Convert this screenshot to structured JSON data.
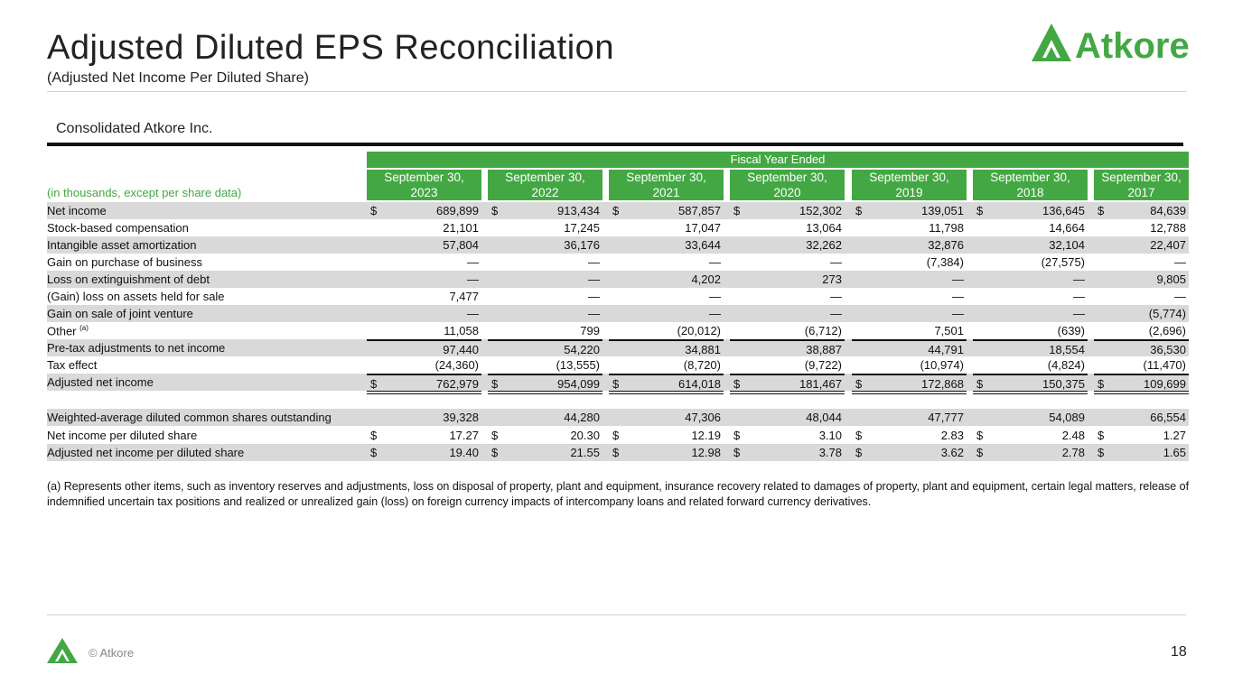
{
  "header": {
    "title": "Adjusted Diluted EPS Reconciliation",
    "subtitle": "(Adjusted Net Income Per Diluted Share)",
    "logo_text": "Atkore"
  },
  "section_title": "Consolidated Atkore Inc.",
  "table": {
    "group_header": "Fiscal Year Ended",
    "units_label": "(in thousands, except per share data)",
    "columns": [
      {
        "line1": "September 30,",
        "line2": "2023"
      },
      {
        "line1": "September 30,",
        "line2": "2022"
      },
      {
        "line1": "September 30,",
        "line2": "2021"
      },
      {
        "line1": "September 30,",
        "line2": "2020"
      },
      {
        "line1": "September 30,",
        "line2": "2019"
      },
      {
        "line1": "September 30,",
        "line2": "2018"
      },
      {
        "line1": "September 30,",
        "line2": "2017"
      }
    ],
    "rows": [
      {
        "label": "Net income",
        "dollar": true,
        "shade": true,
        "values": [
          "689,899",
          "913,434",
          "587,857",
          "152,302",
          "139,051",
          "136,645",
          "84,639"
        ]
      },
      {
        "label": "Stock-based compensation",
        "values": [
          "21,101",
          "17,245",
          "17,047",
          "13,064",
          "11,798",
          "14,664",
          "12,788"
        ]
      },
      {
        "label": "Intangible asset amortization",
        "shade": true,
        "values": [
          "57,804",
          "36,176",
          "33,644",
          "32,262",
          "32,876",
          "32,104",
          "22,407"
        ]
      },
      {
        "label": "Gain on purchase of business",
        "values": [
          "—",
          "—",
          "—",
          "—",
          "(7,384)",
          "(27,575)",
          "—"
        ]
      },
      {
        "label": "Loss on extinguishment of debt",
        "shade": true,
        "values": [
          "—",
          "—",
          "4,202",
          "273",
          "—",
          "—",
          "9,805"
        ]
      },
      {
        "label": "(Gain) loss on assets held for sale",
        "values": [
          "7,477",
          "—",
          "—",
          "—",
          "—",
          "—",
          "—"
        ]
      },
      {
        "label": "Gain on sale of joint venture",
        "shade": true,
        "values": [
          "—",
          "—",
          "—",
          "—",
          "—",
          "—",
          "(5,774)"
        ]
      },
      {
        "label": "Other",
        "footnote": "(a)",
        "values": [
          "11,058",
          "799",
          "(20,012)",
          "(6,712)",
          "7,501",
          "(639)",
          "(2,696)"
        ]
      },
      {
        "label": "Pre-tax adjustments to net income",
        "shade": true,
        "top_rule": true,
        "values": [
          "97,440",
          "54,220",
          "34,881",
          "38,887",
          "44,791",
          "18,554",
          "36,530"
        ]
      },
      {
        "label": "Tax effect",
        "values": [
          "(24,360)",
          "(13,555)",
          "(8,720)",
          "(9,722)",
          "(10,974)",
          "(4,824)",
          "(11,470)"
        ]
      },
      {
        "label": "Adjusted net income",
        "dollar": true,
        "shade": true,
        "top_rule": true,
        "double_bottom": true,
        "values": [
          "762,979",
          "954,099",
          "614,018",
          "181,467",
          "172,868",
          "150,375",
          "109,699"
        ]
      },
      {
        "label": "Weighted-average diluted common shares outstanding",
        "shade": true,
        "gap_before": true,
        "values": [
          "39,328",
          "44,280",
          "47,306",
          "48,044",
          "47,777",
          "54,089",
          "66,554"
        ]
      },
      {
        "label": "Net income per diluted share",
        "dollar": true,
        "values": [
          "17.27",
          "20.30",
          "12.19",
          "3.10",
          "2.83",
          "2.48",
          "1.27"
        ]
      },
      {
        "label": "Adjusted net income per diluted share",
        "dollar": true,
        "shade": true,
        "values": [
          "19.40",
          "21.55",
          "12.98",
          "3.78",
          "3.62",
          "2.78",
          "1.65"
        ]
      }
    ],
    "currency_symbol": "$"
  },
  "footnote": "(a) Represents other items, such as inventory reserves and adjustments, loss on disposal of property, plant and equipment, insurance recovery related to damages of property, plant and equipment, certain legal matters,  release of indemnified uncertain tax positions and realized or unrealized gain (loss) on foreign currency impacts of intercompany loans and related forward currency derivatives.",
  "footer": {
    "copyright": "© Atkore",
    "page_number": "18"
  },
  "colors": {
    "brand_green": "#43a843"
  }
}
